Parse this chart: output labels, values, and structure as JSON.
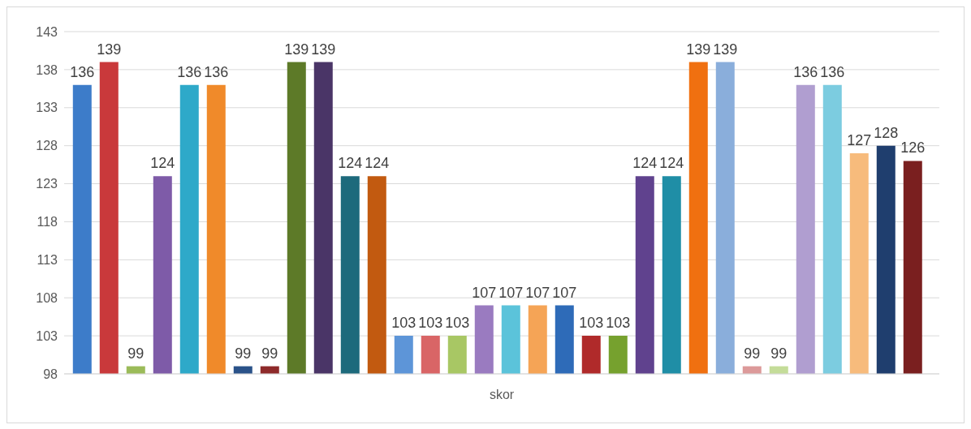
{
  "chart_data": {
    "type": "bar",
    "categories": [
      "skor"
    ],
    "xlabel": null,
    "series": [
      {
        "color": "#3d7cc9",
        "values": [
          136
        ]
      },
      {
        "color": "#c9393b",
        "values": [
          139
        ]
      },
      {
        "color": "#9bbb59",
        "values": [
          99
        ]
      },
      {
        "color": "#7e5ba8",
        "values": [
          124
        ]
      },
      {
        "color": "#2ea9c9",
        "values": [
          136
        ]
      },
      {
        "color": "#f08a2a",
        "values": [
          136
        ]
      },
      {
        "color": "#2a5289",
        "values": [
          99
        ]
      },
      {
        "color": "#8e2a2a",
        "values": [
          99
        ]
      },
      {
        "color": "#5d7a28",
        "values": [
          139
        ]
      },
      {
        "color": "#4a3567",
        "values": [
          139
        ]
      },
      {
        "color": "#1d6a7c",
        "values": [
          124
        ]
      },
      {
        "color": "#c25a10",
        "values": [
          124
        ]
      },
      {
        "color": "#5d95d8",
        "values": [
          103
        ]
      },
      {
        "color": "#d96566",
        "values": [
          103
        ]
      },
      {
        "color": "#a8c764",
        "values": [
          103
        ]
      },
      {
        "color": "#9a7bc0",
        "values": [
          107
        ]
      },
      {
        "color": "#5bc3da",
        "values": [
          107
        ]
      },
      {
        "color": "#f5a456",
        "values": [
          107
        ]
      },
      {
        "color": "#2e6bb8",
        "values": [
          107
        ]
      },
      {
        "color": "#b02a2a",
        "values": [
          103
        ]
      },
      {
        "color": "#76a12e",
        "values": [
          103
        ]
      },
      {
        "color": "#60428e",
        "values": [
          124
        ]
      },
      {
        "color": "#1f8ea6",
        "values": [
          124
        ]
      },
      {
        "color": "#f07010",
        "values": [
          139
        ]
      },
      {
        "color": "#8aaedb",
        "values": [
          139
        ]
      },
      {
        "color": "#dc9a9a",
        "values": [
          99
        ]
      },
      {
        "color": "#c4dc99",
        "values": [
          99
        ]
      },
      {
        "color": "#b09ed0",
        "values": [
          136
        ]
      },
      {
        "color": "#7ccce0",
        "values": [
          136
        ]
      },
      {
        "color": "#f7bb7c",
        "values": [
          127
        ]
      },
      {
        "color": "#1f3e6e",
        "values": [
          128
        ]
      },
      {
        "color": "#7a1f1f",
        "values": [
          126
        ]
      }
    ],
    "ylim": [
      98,
      143
    ],
    "yticks": [
      98,
      103,
      108,
      113,
      118,
      123,
      128,
      133,
      138,
      143
    ],
    "grid": "y",
    "data_labels": true,
    "legend": false
  }
}
